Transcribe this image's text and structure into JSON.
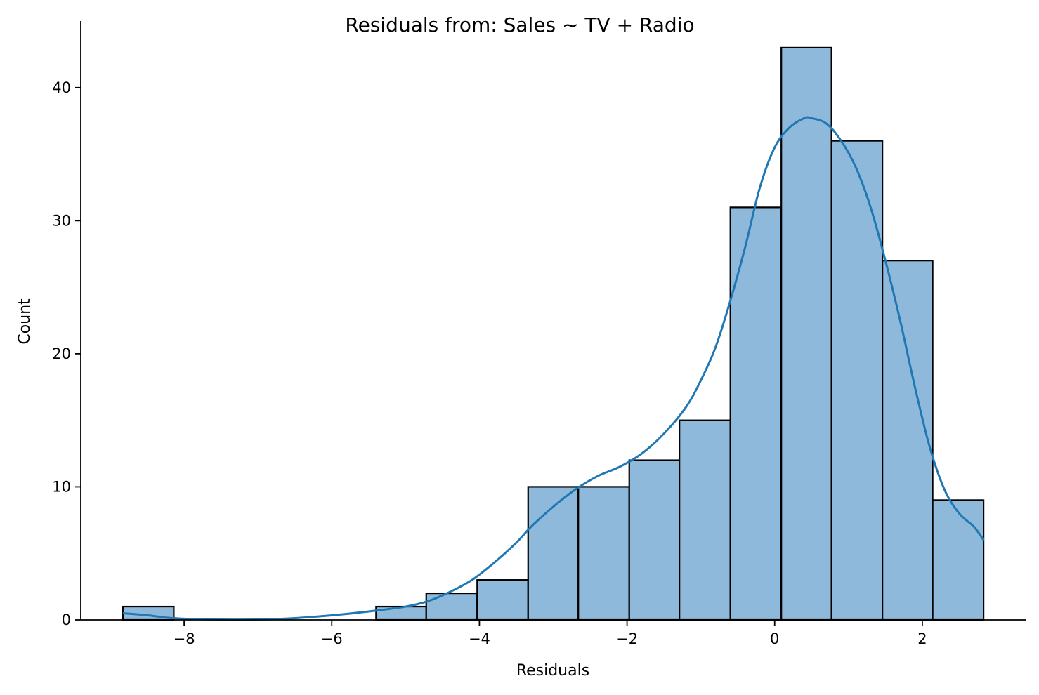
{
  "chart_data": {
    "type": "histogram",
    "title": "Residuals from: Sales ~ TV + Radio",
    "xlabel": "Residuals",
    "ylabel": "Count",
    "xlim": [
      -9.4,
      3.4
    ],
    "ylim": [
      0,
      45
    ],
    "xticks": [
      {
        "value": -8,
        "label": "−8"
      },
      {
        "value": -6,
        "label": "−6"
      },
      {
        "value": -4,
        "label": "−4"
      },
      {
        "value": -2,
        "label": "−2"
      },
      {
        "value": 0,
        "label": "0"
      },
      {
        "value": 2,
        "label": "2"
      }
    ],
    "yticks": [
      {
        "value": 0,
        "label": "0"
      },
      {
        "value": 10,
        "label": "10"
      },
      {
        "value": 20,
        "label": "20"
      },
      {
        "value": 30,
        "label": "30"
      },
      {
        "value": 40,
        "label": "40"
      }
    ],
    "bin_edges": [
      -8.83,
      -8.14,
      -7.46,
      -6.77,
      -6.09,
      -5.4,
      -4.72,
      -4.03,
      -3.34,
      -2.66,
      -1.97,
      -1.29,
      -0.6,
      0.09,
      0.77,
      1.46,
      2.14,
      2.83
    ],
    "counts": [
      1,
      0,
      0,
      0,
      0,
      1,
      2,
      3,
      10,
      10,
      12,
      15,
      31,
      43,
      36,
      27,
      9
    ],
    "bar_color": "#8fb9da",
    "bar_edge_color": "#000000",
    "kde_color": "#1f77b4",
    "kde": {
      "x": [
        -8.83,
        -8.5,
        -8.2,
        -7.8,
        -7.4,
        -7.0,
        -6.6,
        -6.2,
        -5.8,
        -5.4,
        -5.0,
        -4.7,
        -4.4,
        -4.1,
        -3.8,
        -3.5,
        -3.3,
        -3.0,
        -2.7,
        -2.4,
        -2.1,
        -1.8,
        -1.5,
        -1.2,
        -1.0,
        -0.8,
        -0.6,
        -0.4,
        -0.2,
        0.0,
        0.2,
        0.4,
        0.5,
        0.7,
        0.9,
        1.1,
        1.3,
        1.5,
        1.7,
        1.9,
        2.1,
        2.3,
        2.5,
        2.7,
        2.83
      ],
      "y": [
        0.5,
        0.35,
        0.15,
        0.05,
        0.02,
        0.03,
        0.1,
        0.25,
        0.45,
        0.7,
        1.0,
        1.4,
        2.1,
        3.0,
        4.3,
        5.8,
        7.0,
        8.5,
        9.8,
        10.8,
        11.5,
        12.5,
        14.0,
        16.0,
        18.0,
        20.5,
        24.0,
        28.0,
        32.5,
        35.5,
        37.0,
        37.7,
        37.7,
        37.3,
        36.0,
        34.0,
        31.0,
        27.0,
        22.5,
        17.5,
        13.0,
        9.8,
        8.0,
        7.0,
        6.0
      ]
    }
  }
}
